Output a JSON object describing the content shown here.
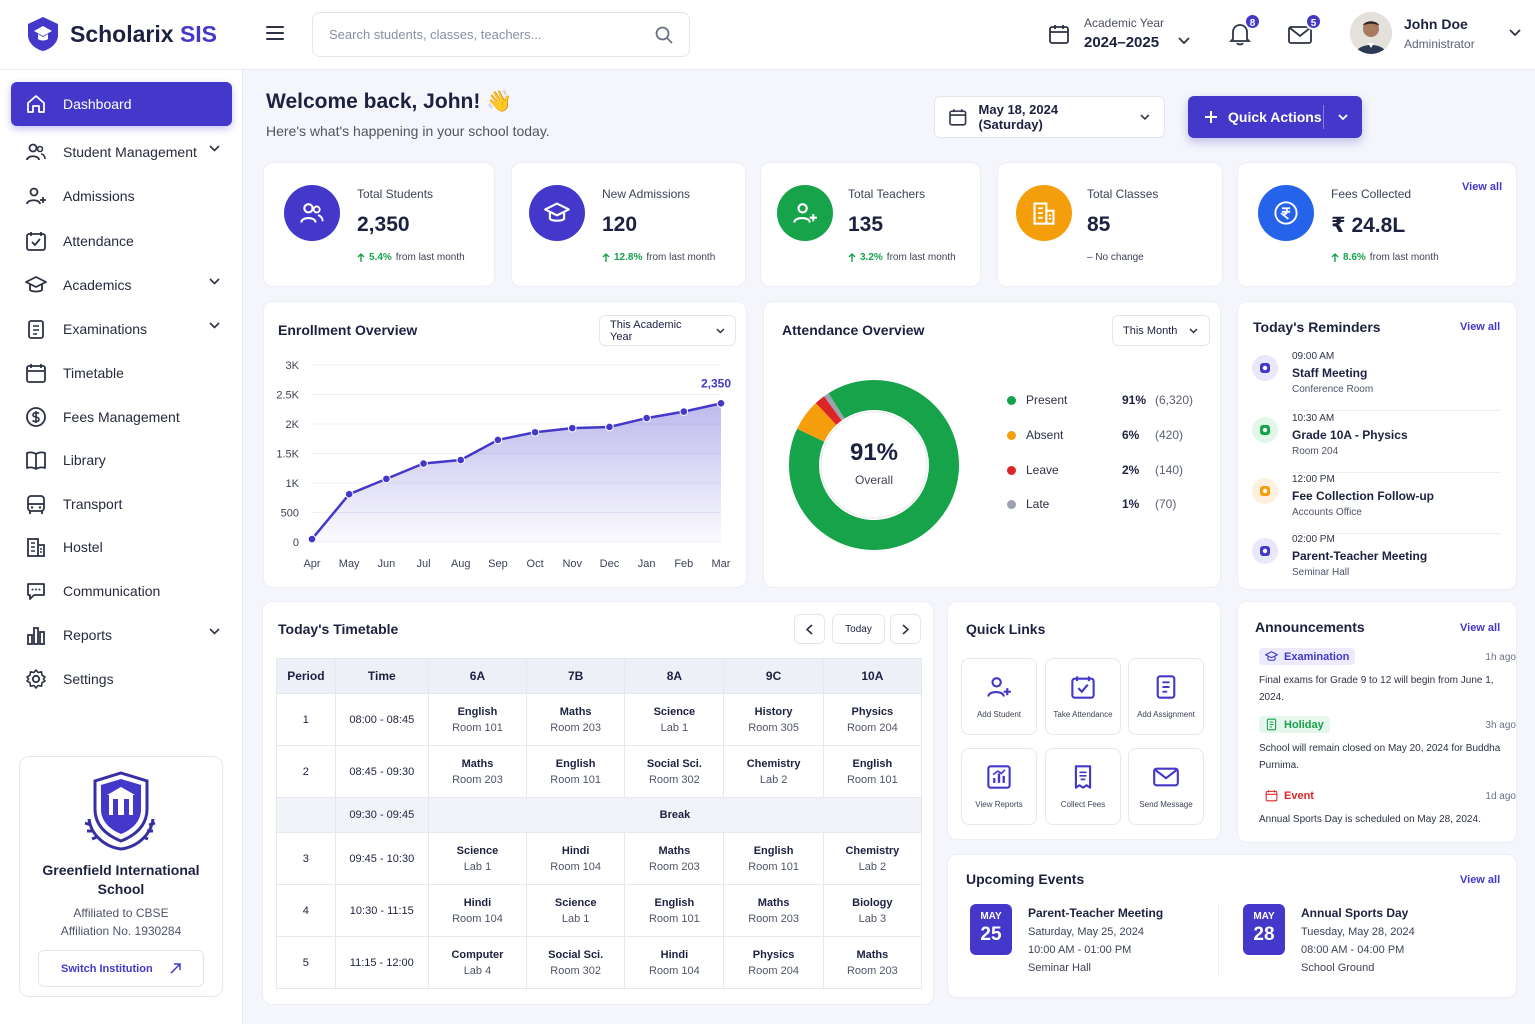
{
  "app": {
    "name_main": "Scholarix",
    "name_accent": "SIS"
  },
  "search": {
    "placeholder": "Search students, classes, teachers..."
  },
  "academic_year": {
    "label": "Academic Year",
    "value": "2024–2025"
  },
  "notifications": {
    "count": "8"
  },
  "messages": {
    "count": "5"
  },
  "user": {
    "name": "John Doe",
    "role": "Administrator"
  },
  "sidebar": {
    "items": [
      {
        "label": "Dashboard",
        "icon": "home-icon"
      },
      {
        "label": "Student Management",
        "icon": "users-icon"
      },
      {
        "label": "Admissions",
        "icon": "user-plus-icon"
      },
      {
        "label": "Attendance",
        "icon": "calendar-check-icon"
      },
      {
        "label": "Academics",
        "icon": "graduation-cap-icon"
      },
      {
        "label": "Examinations",
        "icon": "clipboard-icon"
      },
      {
        "label": "Timetable",
        "icon": "calendar-icon"
      },
      {
        "label": "Fees Management",
        "icon": "dollar-icon"
      },
      {
        "label": "Library",
        "icon": "book-icon"
      },
      {
        "label": "Transport",
        "icon": "bus-icon"
      },
      {
        "label": "Hostel",
        "icon": "building-icon"
      },
      {
        "label": "Communication",
        "icon": "chat-icon"
      },
      {
        "label": "Reports",
        "icon": "bar-chart-icon"
      },
      {
        "label": "Settings",
        "icon": "gear-icon"
      }
    ],
    "school": {
      "name": "Greenfield International School",
      "affiliation": "Affiliated to CBSE",
      "affiliation_no": "Affiliation No. 1930284",
      "switch_label": "Switch Institution"
    }
  },
  "welcome": {
    "title": "Welcome back, John! 👋",
    "subtitle": "Here's what's happening in your school today."
  },
  "date_selector": {
    "value": "May 18, 2024 (Saturday)"
  },
  "quick_actions": {
    "label": "Quick Actions"
  },
  "stats": [
    {
      "label": "Total Students",
      "value": "2,350",
      "change": "5.4%",
      "change_text": "from last month",
      "color": "#4338ca"
    },
    {
      "label": "New Admissions",
      "value": "120",
      "change": "12.8%",
      "change_text": "from last month",
      "color": "#4338ca"
    },
    {
      "label": "Total Teachers",
      "value": "135",
      "change": "3.2%",
      "change_text": "from last month",
      "color": "#16a34a"
    },
    {
      "label": "Total Classes",
      "value": "85",
      "change": "",
      "change_text": "– No change",
      "color": "#f59e0b"
    },
    {
      "label": "Fees Collected",
      "value": "₹ 24.8L",
      "change": "8.6%",
      "change_text": "from last month",
      "color": "#2563eb"
    }
  ],
  "view_all": "View all",
  "enrollment": {
    "title": "Enrollment Overview",
    "filter": "This Academic Year"
  },
  "attendance": {
    "title": "Attendance Overview",
    "filter": "This Month",
    "center_value": "91%",
    "center_label": "Overall"
  },
  "chart_data": [
    {
      "type": "area",
      "x": [
        "Apr",
        "May",
        "Jun",
        "Jul",
        "Aug",
        "Sep",
        "Oct",
        "Nov",
        "Dec",
        "Jan",
        "Feb",
        "Mar"
      ],
      "values": [
        50,
        810,
        1070,
        1330,
        1390,
        1730,
        1860,
        1930,
        1950,
        2100,
        2210,
        2350
      ],
      "yticks": [
        "0",
        "500",
        "1K",
        "1.5K",
        "2K",
        "2.5K",
        "3K"
      ],
      "ylim": [
        0,
        3000
      ],
      "end_label": "2,350",
      "color": "#4338ca"
    },
    {
      "type": "pie",
      "categories": [
        "Present",
        "Absent",
        "Leave",
        "Late"
      ],
      "values": [
        91,
        6,
        2,
        1
      ],
      "counts": [
        "(6,320)",
        "(420)",
        "(140)",
        "(70)"
      ],
      "percents": [
        "91%",
        "6%",
        "2%",
        "1%"
      ],
      "colors": [
        "#16a34a",
        "#f59e0b",
        "#dc2626",
        "#9ca3af"
      ]
    }
  ],
  "reminders": {
    "title": "Today's Reminders",
    "items": [
      {
        "time": "09:00 AM",
        "title": "Staff Meeting",
        "place": "Conference Room",
        "color": "#4338ca",
        "bg": "#e8e7fb"
      },
      {
        "time": "10:30 AM",
        "title": "Grade 10A - Physics",
        "place": "Room 204",
        "color": "#16a34a",
        "bg": "#e3f6ea"
      },
      {
        "time": "12:00 PM",
        "title": "Fee Collection Follow-up",
        "place": "Accounts Office",
        "color": "#f59e0b",
        "bg": "#fdf0dc"
      },
      {
        "time": "02:00 PM",
        "title": "Parent-Teacher Meeting",
        "place": "Seminar Hall",
        "color": "#4338ca",
        "bg": "#e8e7fb"
      }
    ]
  },
  "timetable": {
    "title": "Today's Timetable",
    "today": "Today",
    "headers": [
      "Period",
      "Time",
      "6A",
      "7B",
      "8A",
      "9C",
      "10A"
    ],
    "rows": [
      {
        "period": "1",
        "time": "08:00 - 08:45",
        "cells": [
          [
            "English",
            "Room 101"
          ],
          [
            "Maths",
            "Room 203"
          ],
          [
            "Science",
            "Lab 1"
          ],
          [
            "History",
            "Room 305"
          ],
          [
            "Physics",
            "Room 204"
          ]
        ]
      },
      {
        "period": "2",
        "time": "08:45 - 09:30",
        "cells": [
          [
            "Maths",
            "Room 203"
          ],
          [
            "English",
            "Room 101"
          ],
          [
            "Social Sci.",
            "Room 302"
          ],
          [
            "Chemistry",
            "Lab 2"
          ],
          [
            "English",
            "Room 101"
          ]
        ]
      },
      {
        "period": "3",
        "time": "09:45 - 10:30",
        "cells": [
          [
            "Science",
            "Lab 1"
          ],
          [
            "Hindi",
            "Room 104"
          ],
          [
            "Maths",
            "Room 203"
          ],
          [
            "English",
            "Room 101"
          ],
          [
            "Chemistry",
            "Lab 2"
          ]
        ]
      },
      {
        "period": "4",
        "time": "10:30 - 11:15",
        "cells": [
          [
            "Hindi",
            "Room 104"
          ],
          [
            "Science",
            "Lab 1"
          ],
          [
            "English",
            "Room 101"
          ],
          [
            "Maths",
            "Room 203"
          ],
          [
            "Biology",
            "Lab 3"
          ]
        ]
      },
      {
        "period": "5",
        "time": "11:15 - 12:00",
        "cells": [
          [
            "Computer",
            "Lab 4"
          ],
          [
            "Social Sci.",
            "Room 302"
          ],
          [
            "Hindi",
            "Room 104"
          ],
          [
            "Physics",
            "Room 204"
          ],
          [
            "Maths",
            "Room 203"
          ]
        ]
      }
    ],
    "break": {
      "time": "09:30 - 09:45",
      "label": "Break"
    }
  },
  "quick_links": {
    "title": "Quick Links",
    "items": [
      {
        "label": "Add Student",
        "icon": "user-plus-icon"
      },
      {
        "label": "Take Attendance",
        "icon": "calendar-check-icon"
      },
      {
        "label": "Add Assignment",
        "icon": "document-icon"
      },
      {
        "label": "View Reports",
        "icon": "chart-icon"
      },
      {
        "label": "Collect Fees",
        "icon": "receipt-icon"
      },
      {
        "label": "Send Message",
        "icon": "mail-icon"
      }
    ]
  },
  "announcements": {
    "title": "Announcements",
    "items": [
      {
        "tag": "Examination",
        "ago": "1h ago",
        "text": "Final exams for Grade 9 to 12 will begin from June 1, 2024.",
        "color": "#4338ca",
        "bg": "#eceafc"
      },
      {
        "tag": "Holiday",
        "ago": "3h ago",
        "text": "School will remain closed on May 20, 2024 for Buddha Purnima.",
        "color": "#16a34a",
        "bg": "#e6f6ec"
      },
      {
        "tag": "Event",
        "ago": "1d ago",
        "text": "Annual Sports Day is scheduled on May 28, 2024.",
        "color": "#dc2626",
        "bg": "#ffffff"
      }
    ]
  },
  "events": {
    "title": "Upcoming Events",
    "items": [
      {
        "month": "MAY",
        "day": "25",
        "title": "Parent-Teacher Meeting",
        "date": "Saturday, May 25, 2024",
        "time": "10:00 AM - 01:00 PM",
        "place": "Seminar Hall"
      },
      {
        "month": "MAY",
        "day": "28",
        "title": "Annual Sports Day",
        "date": "Tuesday, May 28, 2024",
        "time": "08:00 AM - 04:00 PM",
        "place": "School Ground"
      }
    ]
  }
}
